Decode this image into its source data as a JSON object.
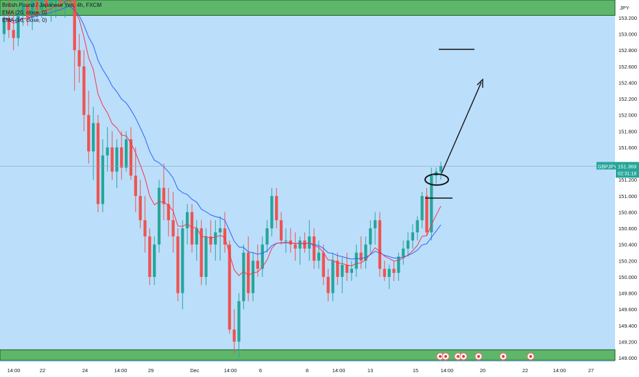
{
  "chart_data": {
    "type": "candlestick",
    "symbol": "British Pound / Japanese Yen, 4h, FXCM",
    "ticker": "GBPJPY",
    "currency": "JPY",
    "indicators": [
      {
        "name": "EMA (20, close, 0)",
        "color": "#2962ff"
      },
      {
        "name": "EMA (10, close, 0)",
        "color": "#f23645"
      }
    ],
    "y_axis": {
      "min": 148.95,
      "max": 153.42,
      "ticks": [
        "153.200",
        "153.000",
        "152.800",
        "152.600",
        "152.400",
        "152.200",
        "152.000",
        "151.800",
        "151.600",
        "151.400",
        "151.200",
        "151.000",
        "150.800",
        "150.600",
        "150.400",
        "150.200",
        "150.000",
        "149.800",
        "149.600",
        "149.400",
        "149.200",
        "149.000"
      ]
    },
    "x_axis": {
      "ticks": [
        "14:00",
        "22",
        "24",
        "14:00",
        "29",
        "Dec",
        "14:00",
        "6",
        "8",
        "14:00",
        "13",
        "15",
        "14:00",
        "20",
        "22",
        "14:00",
        "27"
      ]
    },
    "current_price": {
      "value": "151.369",
      "countdown": "02:31:18",
      "label": "GBPJPY"
    },
    "zones": [
      {
        "name": "resistance-zone",
        "from": 153.23,
        "to": 153.42,
        "color": "#4caf50"
      },
      {
        "name": "support-zone",
        "from": 148.97,
        "to": 149.1,
        "color": "#4caf50"
      }
    ],
    "candles": [
      [
        153.0,
        153.3,
        152.9,
        153.2
      ],
      [
        153.2,
        153.4,
        152.95,
        153.05
      ],
      [
        153.05,
        153.3,
        152.8,
        152.95
      ],
      [
        152.95,
        153.35,
        152.85,
        153.25
      ],
      [
        153.25,
        153.45,
        153.1,
        153.35
      ],
      [
        153.35,
        153.45,
        153.1,
        153.2
      ],
      [
        153.2,
        153.45,
        153.05,
        153.4
      ],
      [
        153.4,
        153.5,
        153.2,
        153.3
      ],
      [
        153.3,
        153.5,
        153.2,
        153.45
      ],
      [
        153.45,
        153.55,
        153.25,
        153.35
      ],
      [
        153.35,
        153.5,
        153.15,
        153.4
      ],
      [
        153.4,
        153.6,
        153.2,
        153.5
      ],
      [
        153.5,
        153.7,
        153.3,
        153.4
      ],
      [
        153.4,
        153.8,
        153.2,
        153.6
      ],
      [
        153.6,
        153.9,
        153.4,
        153.5
      ],
      [
        153.5,
        153.7,
        152.3,
        152.8
      ],
      [
        152.8,
        153.0,
        152.4,
        152.6
      ],
      [
        152.6,
        152.8,
        151.8,
        152.0
      ],
      [
        152.0,
        152.3,
        151.4,
        151.55
      ],
      [
        151.55,
        152.1,
        151.2,
        151.9
      ],
      [
        151.9,
        152.0,
        150.8,
        150.9
      ],
      [
        150.9,
        151.7,
        150.8,
        151.5
      ],
      [
        151.5,
        151.85,
        151.3,
        151.6
      ],
      [
        151.6,
        151.8,
        151.2,
        151.3
      ],
      [
        151.3,
        151.7,
        151.1,
        151.6
      ],
      [
        151.6,
        151.8,
        151.2,
        151.35
      ],
      [
        151.35,
        151.8,
        151.3,
        151.7
      ],
      [
        151.7,
        151.85,
        151.2,
        151.25
      ],
      [
        151.25,
        151.6,
        150.8,
        151.0
      ],
      [
        151.0,
        151.2,
        150.6,
        150.7
      ],
      [
        150.7,
        151.0,
        150.3,
        150.5
      ],
      [
        150.5,
        150.6,
        149.9,
        150.0
      ],
      [
        150.0,
        150.5,
        149.9,
        150.4
      ],
      [
        150.4,
        151.2,
        150.3,
        151.1
      ],
      [
        151.1,
        151.4,
        150.7,
        150.9
      ],
      [
        150.9,
        151.1,
        150.5,
        150.7
      ],
      [
        150.7,
        151.05,
        150.3,
        150.5
      ],
      [
        150.5,
        150.6,
        149.7,
        149.8
      ],
      [
        149.8,
        150.7,
        149.6,
        150.6
      ],
      [
        150.6,
        150.9,
        150.4,
        150.8
      ],
      [
        150.8,
        150.9,
        150.3,
        150.4
      ],
      [
        150.4,
        150.7,
        150.2,
        150.6
      ],
      [
        150.6,
        150.7,
        149.9,
        150.0
      ],
      [
        150.0,
        150.6,
        149.9,
        150.5
      ],
      [
        150.5,
        150.7,
        150.3,
        150.4
      ],
      [
        150.4,
        150.7,
        150.2,
        150.55
      ],
      [
        150.55,
        150.75,
        150.2,
        150.6
      ],
      [
        150.6,
        150.8,
        150.3,
        150.4
      ],
      [
        150.4,
        150.45,
        149.3,
        149.35
      ],
      [
        149.35,
        149.6,
        149.05,
        149.2
      ],
      [
        149.2,
        149.8,
        149.0,
        149.7
      ],
      [
        149.7,
        150.4,
        149.6,
        150.3
      ],
      [
        150.3,
        150.5,
        149.7,
        149.8
      ],
      [
        149.8,
        150.3,
        149.7,
        150.2
      ],
      [
        150.2,
        150.4,
        150.0,
        150.1
      ],
      [
        150.1,
        150.5,
        150.0,
        150.4
      ],
      [
        150.4,
        150.7,
        150.3,
        150.6
      ],
      [
        150.6,
        151.1,
        150.5,
        151.0
      ],
      [
        151.0,
        151.1,
        150.6,
        150.7
      ],
      [
        150.7,
        150.8,
        150.4,
        150.45
      ],
      [
        150.45,
        150.6,
        150.3,
        150.45
      ],
      [
        150.45,
        150.6,
        150.3,
        150.4
      ],
      [
        150.4,
        150.55,
        150.2,
        150.35
      ],
      [
        150.35,
        150.5,
        150.15,
        150.45
      ],
      [
        150.45,
        150.55,
        150.3,
        150.35
      ],
      [
        150.35,
        150.7,
        150.2,
        150.5
      ],
      [
        150.5,
        150.6,
        150.1,
        150.2
      ],
      [
        150.2,
        150.45,
        150.1,
        150.3
      ],
      [
        150.3,
        150.4,
        149.9,
        150.0
      ],
      [
        150.0,
        150.1,
        149.7,
        149.8
      ],
      [
        149.8,
        150.3,
        149.7,
        150.2
      ],
      [
        150.2,
        150.3,
        149.9,
        150.0
      ],
      [
        150.0,
        150.25,
        149.8,
        150.15
      ],
      [
        150.15,
        150.3,
        149.95,
        150.05
      ],
      [
        150.05,
        150.2,
        149.95,
        150.1
      ],
      [
        150.1,
        150.4,
        150.0,
        150.3
      ],
      [
        150.3,
        150.5,
        150.1,
        150.2
      ],
      [
        150.2,
        150.5,
        150.1,
        150.4
      ],
      [
        150.4,
        150.7,
        150.3,
        150.6
      ],
      [
        150.6,
        150.8,
        150.4,
        150.7
      ],
      [
        150.7,
        150.8,
        150.0,
        150.1
      ],
      [
        150.1,
        150.2,
        149.95,
        150.0
      ],
      [
        150.0,
        150.15,
        149.85,
        150.1
      ],
      [
        150.1,
        150.2,
        149.95,
        150.05
      ],
      [
        150.05,
        150.3,
        149.95,
        150.25
      ],
      [
        150.25,
        150.45,
        150.15,
        150.35
      ],
      [
        150.35,
        150.55,
        150.25,
        150.45
      ],
      [
        150.45,
        150.65,
        150.35,
        150.55
      ],
      [
        150.55,
        150.75,
        150.45,
        150.7
      ],
      [
        150.7,
        151.05,
        150.6,
        151.0
      ],
      [
        151.0,
        151.1,
        150.5,
        150.55
      ],
      [
        150.55,
        151.35,
        150.45,
        151.25
      ],
      [
        151.25,
        151.35,
        151.15,
        151.3
      ],
      [
        151.3,
        151.42,
        151.2,
        151.37
      ]
    ]
  }
}
